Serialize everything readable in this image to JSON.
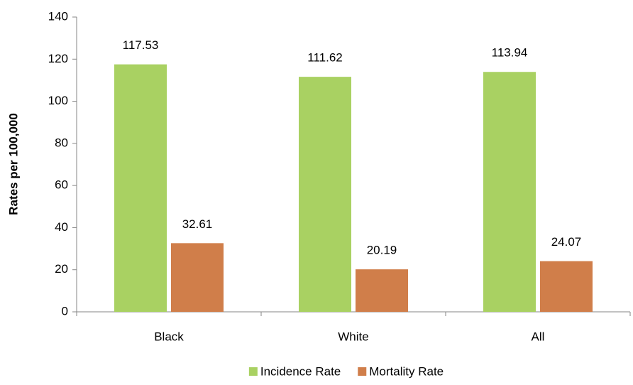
{
  "chart_data": {
    "type": "bar",
    "y_label": "Rates per 100,000",
    "categories": [
      "Black",
      "White",
      "All"
    ],
    "series": [
      {
        "name": "Incidence Rate",
        "color": "#a9d162",
        "values": [
          117.53,
          111.62,
          113.94
        ]
      },
      {
        "name": "Mortality Rate",
        "color": "#d07e4a",
        "values": [
          32.61,
          20.19,
          24.07
        ]
      }
    ],
    "ylim": [
      0,
      140
    ],
    "yticks": [
      0,
      20,
      40,
      60,
      80,
      100,
      120,
      140
    ],
    "grid": false,
    "legend": "bottom"
  }
}
